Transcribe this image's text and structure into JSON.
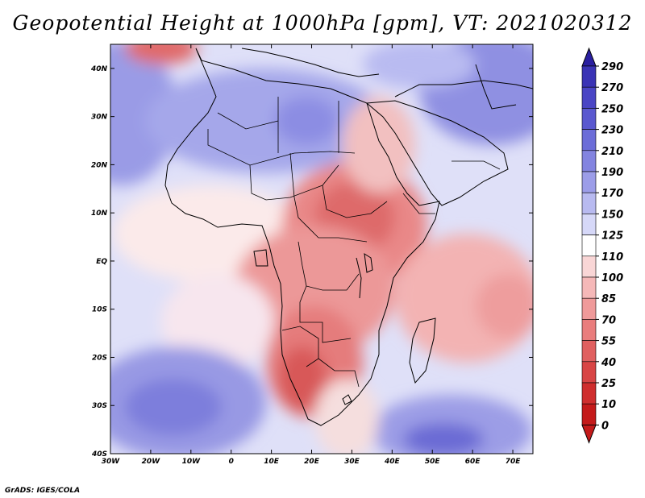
{
  "title": "Geopotential Height at 1000hPa [gpm], VT: 2021020312",
  "credit": "GrADS: IGES/COLA",
  "map": {
    "variable": "Geopotential Height",
    "level": "1000hPa",
    "units": "gpm",
    "valid_time": "2021020312",
    "lon_range": [
      -30,
      75
    ],
    "lat_range": [
      -40,
      45
    ],
    "lon_ticks": [
      "30W",
      "20W",
      "10W",
      "0",
      "10E",
      "20E",
      "30E",
      "40E",
      "50E",
      "60E",
      "70E"
    ],
    "lat_ticks": [
      "40N",
      "30N",
      "20N",
      "10N",
      "EQ",
      "10S",
      "20S",
      "30S",
      "40S"
    ],
    "lon_tick_values": [
      -30,
      -20,
      -10,
      0,
      10,
      20,
      30,
      40,
      50,
      60,
      70
    ],
    "lat_tick_values": [
      40,
      30,
      20,
      10,
      0,
      -10,
      -20,
      -30,
      -40
    ]
  },
  "colorbar": {
    "labels": [
      "290",
      "270",
      "250",
      "230",
      "210",
      "190",
      "170",
      "150",
      "125",
      "110",
      "100",
      "85",
      "70",
      "55",
      "40",
      "25",
      "10",
      "0"
    ],
    "colors": [
      "#2a1fa0",
      "#3a33b5",
      "#4a45c5",
      "#5a58cf",
      "#6c6dd8",
      "#8384e0",
      "#9c9de8",
      "#b8baf0",
      "#d6d8f8",
      "#ffffff",
      "#f9d6d6",
      "#f5b8b8",
      "#ef9a9a",
      "#e97d7d",
      "#e06060",
      "#d84545",
      "#cf2e2e",
      "#c41a1a"
    ]
  }
}
